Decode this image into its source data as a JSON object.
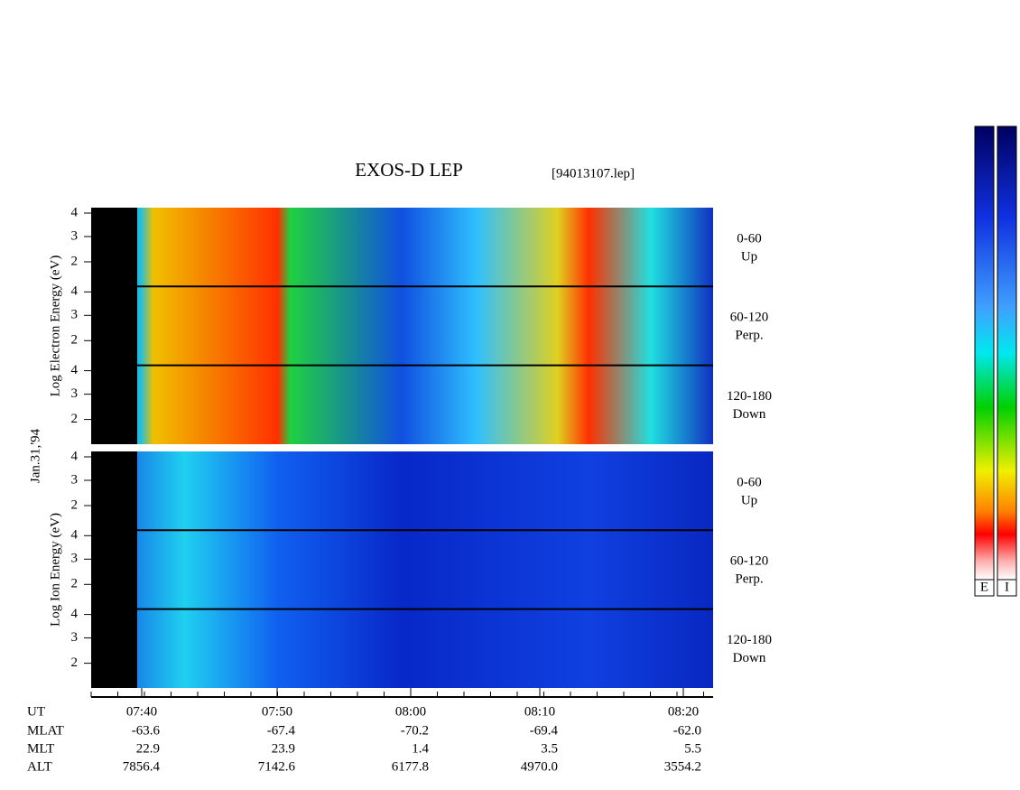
{
  "title": "EXOS-D LEP",
  "file": "[94013107.lep]",
  "date_label": "Jan.31,'94",
  "groups": [
    {
      "ylabel": "Log Electron Energy (eV)",
      "subpanels": [
        {
          "label": "0-60",
          "sublabel": "Up",
          "yticks": [
            4,
            3,
            2
          ]
        },
        {
          "label": "60-120",
          "sublabel": "Perp.",
          "yticks": [
            4,
            3,
            2
          ]
        },
        {
          "label": "120-180",
          "sublabel": "Down",
          "yticks": [
            4,
            3,
            2
          ]
        }
      ]
    },
    {
      "ylabel": "Log Ion Energy (eV)",
      "subpanels": [
        {
          "label": "0-60",
          "sublabel": "Up",
          "yticks": [
            4,
            3,
            2
          ]
        },
        {
          "label": "60-120",
          "sublabel": "Perp.",
          "yticks": [
            4,
            3,
            2
          ]
        },
        {
          "label": "120-180",
          "sublabel": "Down",
          "yticks": [
            4,
            3,
            2
          ]
        }
      ]
    }
  ],
  "time_axis": {
    "row_labels": [
      "UT",
      "MLAT",
      "MLT",
      "ALT"
    ],
    "columns": [
      [
        "07:40",
        "-63.6",
        "22.9",
        "7856.4"
      ],
      [
        "07:50",
        "-67.4",
        "23.9",
        "7142.6"
      ],
      [
        "08:00",
        "-70.2",
        "1.4",
        "6177.8"
      ],
      [
        "08:10",
        "-69.4",
        "3.5",
        "4970.0"
      ],
      [
        "08:20",
        "-62.0",
        "5.5",
        "3554.2"
      ]
    ]
  },
  "colorbars": [
    "E",
    "I"
  ]
}
